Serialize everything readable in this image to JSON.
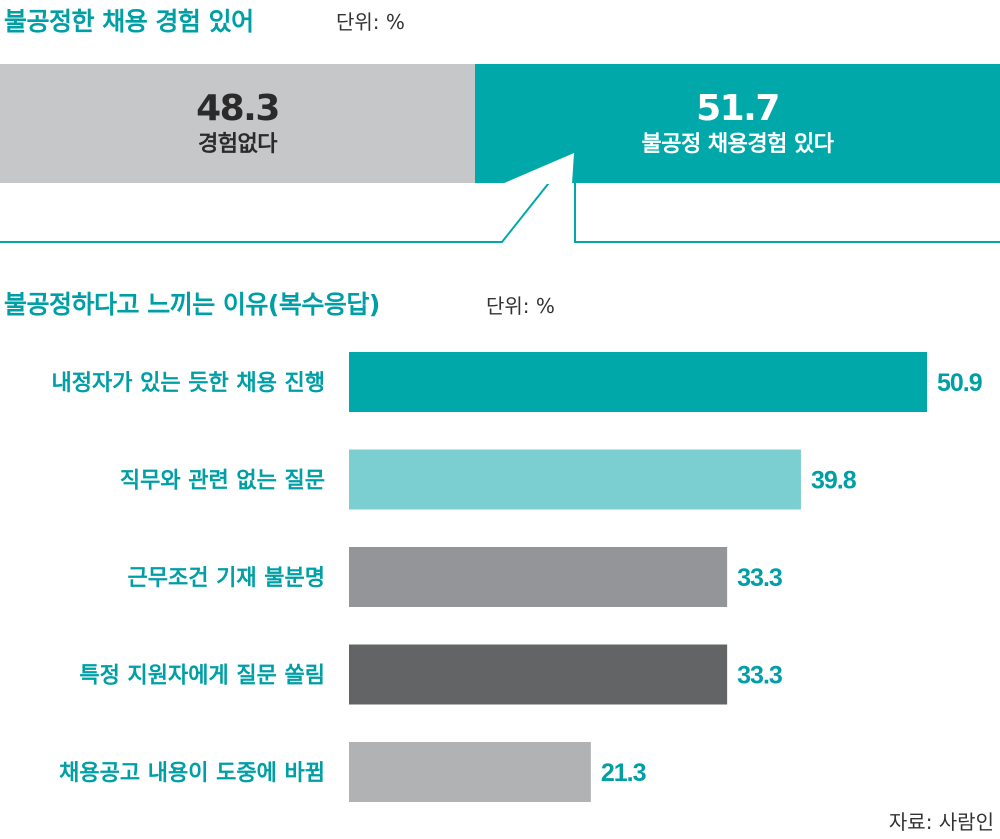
{
  "section1": {
    "title": "불공정한 채용 경험 있어",
    "unit": "단위: %"
  },
  "section2": {
    "title": "불공정하다고 느끼는 이유(복수응답)",
    "unit": "단위: %"
  },
  "source": "자료: 사람인",
  "chart_data": [
    {
      "type": "bar",
      "orientation": "horizontal-stacked",
      "title": "불공정한 채용 경험 있어",
      "unit": "단위: %",
      "segments": [
        {
          "value": "48.3",
          "label": "경험없다",
          "color": "#c6c7c9"
        },
        {
          "value": "51.7",
          "label": "불공정 채용경험 있다",
          "color": "#00a8a9"
        }
      ]
    },
    {
      "type": "bar",
      "orientation": "horizontal",
      "title": "불공정하다고 느끼는 이유(복수응답)",
      "unit": "단위: %",
      "xlim": [
        0,
        50.9
      ],
      "categories": [
        "내정자가 있는 듯한 채용 진행",
        "직무와 관련 없는 질문",
        "근무조건 기재 불분명",
        "특정 지원자에게 질문 쏠림",
        "채용공고 내용이 도중에 바뀜"
      ],
      "values": [
        50.9,
        39.8,
        33.3,
        33.3,
        21.3
      ],
      "value_labels": [
        "50.9",
        "39.8",
        "33.3",
        "33.3",
        "21.3"
      ],
      "colors": [
        "#00a8a9",
        "#7ccfd1",
        "#939598",
        "#636466",
        "#b1b2b4"
      ],
      "label_color": "#009fa6",
      "value_color": "#009fa6"
    }
  ]
}
